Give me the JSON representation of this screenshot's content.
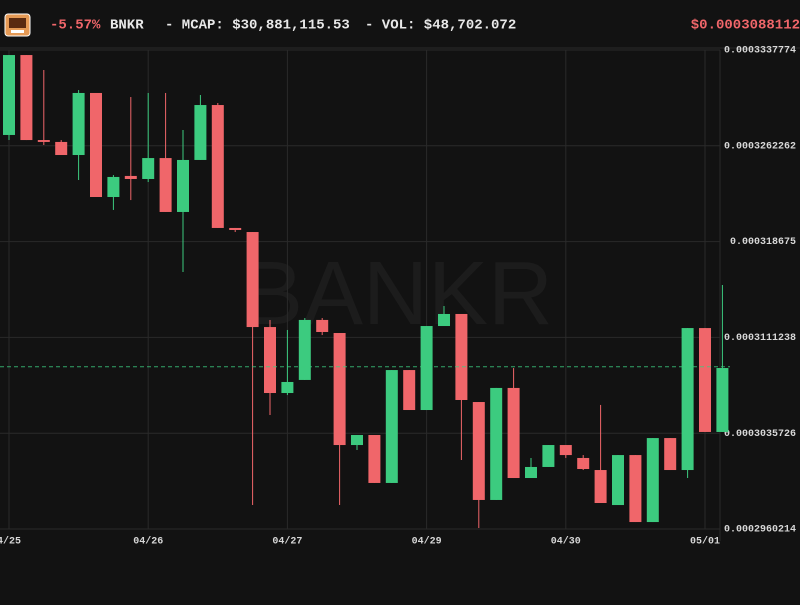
{
  "header": {
    "change": "-5.57%",
    "symbol": "BNKR",
    "mcap": "- MCAP: $30,881,115.53",
    "vol": "- VOL: $48,702.072",
    "price": "$0.0003088112"
  },
  "chart_data": {
    "type": "candlestick",
    "watermark": "BANKR",
    "categories": [
      "4/25",
      null,
      null,
      null,
      null,
      null,
      null,
      null,
      "04/26",
      null,
      null,
      null,
      null,
      null,
      null,
      null,
      "04/27",
      null,
      null,
      null,
      null,
      null,
      null,
      null,
      "04/29",
      null,
      null,
      null,
      null,
      null,
      null,
      null,
      "04/30",
      null,
      null,
      null,
      null,
      null,
      null,
      null,
      "05/01",
      null
    ],
    "open": [
      0.00032708,
      0.00033338,
      0.00032668,
      0.00032653,
      0.0003255,
      0.00033039,
      0.00032219,
      0.00032385,
      0.00032361,
      0.00032526,
      0.00032101,
      0.00032511,
      0.00032944,
      0.00031975,
      0.00031943,
      0.00031194,
      0.00030674,
      0.00030777,
      0.0003125,
      0.00031147,
      0.00030264,
      0.00030343,
      0.00029965,
      0.00030855,
      0.0003054,
      0.00031202,
      0.00031297,
      0.00030603,
      0.00029831,
      0.00030714,
      0.00030004,
      0.00030091,
      0.00030264,
      0.00030162,
      0.00030067,
      0.00029791,
      0.00030185,
      0.00029657,
      0.00030319,
      0.00030067,
      0.00031186,
      0.00030367
    ],
    "high": [
      0.00033338,
      0.00033338,
      0.0003322,
      0.00032668,
      0.00033062,
      0.00033039,
      0.00032392,
      0.00033007,
      0.00033039,
      0.00033039,
      0.00032747,
      0.00033023,
      0.0003296,
      0.00031975,
      0.00031943,
      0.0003125,
      0.00031171,
      0.00031265,
      0.00031265,
      0.00031147,
      0.00030343,
      0.00030343,
      0.00030855,
      0.00030855,
      0.00031202,
      0.0003136,
      0.00031297,
      0.00030603,
      0.00030714,
      0.00030871,
      0.00030162,
      0.00030264,
      0.00030264,
      0.00030185,
      0.0003058,
      0.00030185,
      0.00030185,
      0.00030319,
      0.00030319,
      0.00031186,
      0.00031186,
      0.00031525
    ],
    "low": [
      0.00032668,
      0.00032668,
      0.00032629,
      0.0003255,
      0.00032353,
      0.00032219,
      0.00032117,
      0.00032195,
      0.00032337,
      0.00032101,
      0.00031628,
      0.00032511,
      0.00031975,
      0.00031943,
      0.00029791,
      0.00030501,
      0.00030658,
      0.00030777,
      0.00031131,
      0.00029791,
      0.00030225,
      0.00029965,
      0.00029965,
      0.0003054,
      0.0003054,
      0.00031202,
      0.00030146,
      0.0002961,
      0.00029831,
      0.00030004,
      0.00030004,
      0.00030091,
      0.00030162,
      0.00030067,
      0.00029807,
      0.00029791,
      0.00029657,
      0.00029657,
      0.00030067,
      0.00030004,
      0.00030367,
      0.00030367
    ],
    "close": [
      0.00033338,
      0.00032668,
      0.00032653,
      0.0003255,
      0.00033039,
      0.00032219,
      0.00032377,
      0.00032361,
      0.00032526,
      0.00032101,
      0.00032511,
      0.00032944,
      0.00031975,
      0.00031959,
      0.00031194,
      0.00030674,
      0.00030761,
      0.0003125,
      0.00031155,
      0.00030264,
      0.00030343,
      0.00029965,
      0.00030855,
      0.0003054,
      0.00031202,
      0.00031297,
      0.00030619,
      0.00029831,
      0.00030714,
      0.00030004,
      0.00030091,
      0.00030264,
      0.00030185,
      0.00030075,
      0.00029807,
      0.00030185,
      0.00029657,
      0.00030319,
      0.00030067,
      0.00031186,
      0.00030367,
      0.00030871
    ],
    "up_color": "#3ccb7f",
    "down_color": "#f0666a",
    "price_line": 0.0003088112,
    "ylim": [
      0.0002960214,
      0.0003337774
    ],
    "yticks": [
      0.0003337774,
      0.0003262262,
      0.000318675,
      0.0003111238,
      0.0003035726,
      0.0002960214
    ],
    "grid": true
  }
}
